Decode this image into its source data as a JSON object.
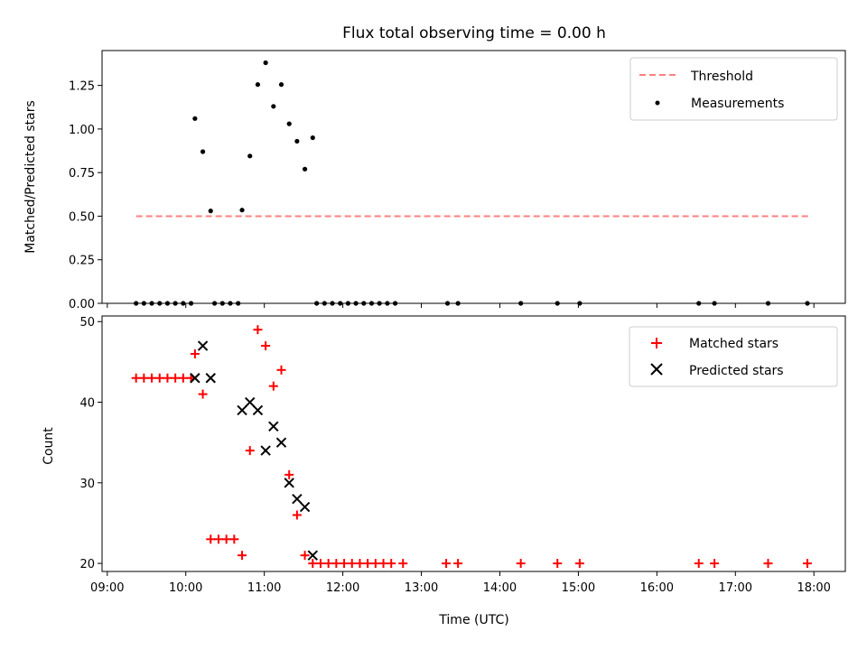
{
  "chart_data": [
    {
      "type": "scatter",
      "title": "Flux total observing time = 0.00 h",
      "xlabel": "",
      "ylabel": "Matched/Predicted stars",
      "xlim": [
        "08:56",
        "18:24"
      ],
      "ylim": [
        0,
        1.45
      ],
      "yticks": [
        "0.00",
        "0.25",
        "0.50",
        "0.75",
        "1.00",
        "1.25"
      ],
      "legend": "top-right",
      "series": [
        {
          "name": "Threshold",
          "kind": "dashed-line",
          "color": "#ff7f7f",
          "points": [
            [
              "09:22",
              0.5
            ],
            [
              "17:57",
              0.5
            ]
          ]
        },
        {
          "name": "Measurements",
          "kind": "dot",
          "color": "#000000",
          "points": [
            [
              "09:22",
              0.0
            ],
            [
              "09:28",
              0.0
            ],
            [
              "09:34",
              0.0
            ],
            [
              "09:40",
              0.0
            ],
            [
              "09:46",
              0.0
            ],
            [
              "09:52",
              0.0
            ],
            [
              "09:58",
              0.0
            ],
            [
              "10:04",
              0.0
            ],
            [
              "10:07",
              1.06
            ],
            [
              "10:13",
              0.87
            ],
            [
              "10:19",
              0.53
            ],
            [
              "10:22",
              0.0
            ],
            [
              "10:28",
              0.0
            ],
            [
              "10:34",
              0.0
            ],
            [
              "10:40",
              0.0
            ],
            [
              "10:43",
              0.535
            ],
            [
              "10:49",
              0.845
            ],
            [
              "10:55",
              1.255
            ],
            [
              "11:01",
              1.38
            ],
            [
              "11:07",
              1.13
            ],
            [
              "11:13",
              1.255
            ],
            [
              "11:19",
              1.03
            ],
            [
              "11:25",
              0.93
            ],
            [
              "11:31",
              0.77
            ],
            [
              "11:37",
              0.95
            ],
            [
              "11:40",
              0.0
            ],
            [
              "11:46",
              0.0
            ],
            [
              "11:52",
              0.0
            ],
            [
              "11:58",
              0.0
            ],
            [
              "12:04",
              0.0
            ],
            [
              "12:10",
              0.0
            ],
            [
              "12:16",
              0.0
            ],
            [
              "12:22",
              0.0
            ],
            [
              "12:28",
              0.0
            ],
            [
              "12:34",
              0.0
            ],
            [
              "12:40",
              0.0
            ],
            [
              "13:20",
              0.0
            ],
            [
              "13:28",
              0.0
            ],
            [
              "14:16",
              0.0
            ],
            [
              "14:44",
              0.0
            ],
            [
              "15:01",
              0.0
            ],
            [
              "16:32",
              0.0
            ],
            [
              "16:44",
              0.0
            ],
            [
              "17:25",
              0.0
            ],
            [
              "17:55",
              0.0
            ]
          ]
        }
      ]
    },
    {
      "type": "scatter",
      "title": "",
      "xlabel": "Time (UTC)",
      "ylabel": "Count",
      "xlim": [
        "08:56",
        "18:24"
      ],
      "ylim": [
        19,
        50.7
      ],
      "yticks": [
        "20",
        "30",
        "40",
        "50"
      ],
      "xticks": [
        "09:00",
        "10:00",
        "11:00",
        "12:00",
        "13:00",
        "14:00",
        "15:00",
        "16:00",
        "17:00",
        "18:00"
      ],
      "legend": "top-right",
      "series": [
        {
          "name": "Matched stars",
          "kind": "plus",
          "color": "#ff0000",
          "points": [
            [
              "09:22",
              43
            ],
            [
              "09:28",
              43
            ],
            [
              "09:34",
              43
            ],
            [
              "09:40",
              43
            ],
            [
              "09:46",
              43
            ],
            [
              "09:52",
              43
            ],
            [
              "09:58",
              43
            ],
            [
              "10:04",
              43
            ],
            [
              "10:07",
              46
            ],
            [
              "10:13",
              41
            ],
            [
              "10:19",
              23
            ],
            [
              "10:25",
              23
            ],
            [
              "10:31",
              23
            ],
            [
              "10:37",
              23
            ],
            [
              "10:43",
              21
            ],
            [
              "10:49",
              34
            ],
            [
              "10:55",
              49
            ],
            [
              "11:01",
              47
            ],
            [
              "11:07",
              42
            ],
            [
              "11:13",
              44
            ],
            [
              "11:19",
              31
            ],
            [
              "11:25",
              26
            ],
            [
              "11:31",
              21
            ],
            [
              "11:37",
              20
            ],
            [
              "11:43",
              20
            ],
            [
              "11:49",
              20
            ],
            [
              "11:55",
              20
            ],
            [
              "12:01",
              20
            ],
            [
              "12:07",
              20
            ],
            [
              "12:13",
              20
            ],
            [
              "12:19",
              20
            ],
            [
              "12:25",
              20
            ],
            [
              "12:31",
              20
            ],
            [
              "12:37",
              20
            ],
            [
              "12:46",
              20
            ],
            [
              "13:19",
              20
            ],
            [
              "13:28",
              20
            ],
            [
              "14:16",
              20
            ],
            [
              "14:44",
              20
            ],
            [
              "15:01",
              20
            ],
            [
              "16:32",
              20
            ],
            [
              "16:44",
              20
            ],
            [
              "17:25",
              20
            ],
            [
              "17:55",
              20
            ]
          ]
        },
        {
          "name": "Predicted stars",
          "kind": "x",
          "color": "#000000",
          "points": [
            [
              "10:07",
              43
            ],
            [
              "10:13",
              47
            ],
            [
              "10:19",
              43
            ],
            [
              "10:43",
              39
            ],
            [
              "10:49",
              40
            ],
            [
              "10:55",
              39
            ],
            [
              "11:01",
              34
            ],
            [
              "11:07",
              37
            ],
            [
              "11:13",
              35
            ],
            [
              "11:19",
              30
            ],
            [
              "11:25",
              28
            ],
            [
              "11:31",
              27
            ],
            [
              "11:37",
              21
            ]
          ]
        }
      ]
    }
  ]
}
